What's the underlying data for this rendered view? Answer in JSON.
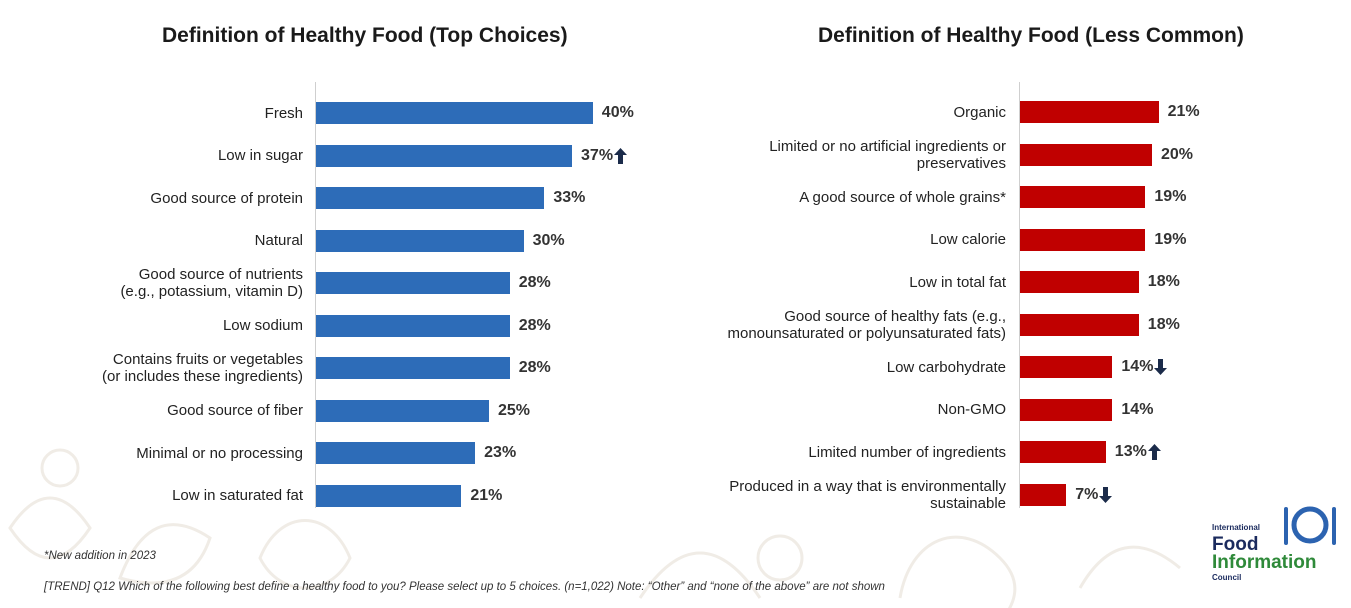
{
  "chart_data": [
    {
      "type": "bar",
      "orientation": "horizontal",
      "title": "Definition of Healthy Food (Top Choices)",
      "color": "#2d6cb8",
      "categories": [
        "Fresh",
        "Low in sugar",
        "Good source of protein",
        "Natural",
        "Good source of nutrients (e.g., potassium, vitamin D)",
        "Low sodium",
        "Contains fruits or vegetables (or includes these ingredients)",
        "Good source of fiber",
        "Minimal or no processing",
        "Low in saturated fat"
      ],
      "label_lines": [
        [
          "Fresh"
        ],
        [
          "Low in sugar"
        ],
        [
          "Good source of protein"
        ],
        [
          "Natural"
        ],
        [
          "Good source of nutrients",
          "(e.g., potassium, vitamin D)"
        ],
        [
          "Low sodium"
        ],
        [
          "Contains fruits or vegetables",
          "(or includes these ingredients)"
        ],
        [
          "Good source of fiber"
        ],
        [
          "Minimal or no processing"
        ],
        [
          "Low in saturated fat"
        ]
      ],
      "values": [
        40,
        37,
        33,
        30,
        28,
        28,
        28,
        25,
        23,
        21
      ],
      "value_labels": [
        "40%",
        "37%",
        "33%",
        "30%",
        "28%",
        "28%",
        "28%",
        "25%",
        "23%",
        "21%"
      ],
      "trend": [
        "",
        "up",
        "",
        "",
        "",
        "",
        "",
        "",
        "",
        ""
      ]
    },
    {
      "type": "bar",
      "orientation": "horizontal",
      "title": "Definition of Healthy Food (Less Common)",
      "color": "#c00000",
      "categories": [
        "Organic",
        "Limited or no artificial ingredients or preservatives",
        "A good source of whole grains*",
        "Low calorie",
        "Low in total fat",
        "Good source of healthy fats (e.g., monounsaturated or polyunsaturated fats)",
        "Low carbohydrate",
        "Non-GMO",
        "Limited number of ingredients",
        "Produced in a way that is environmentally sustainable"
      ],
      "label_lines": [
        [
          "Organic"
        ],
        [
          "Limited or no artificial ingredients or",
          "preservatives"
        ],
        [
          "A good source of whole grains*"
        ],
        [
          "Low calorie"
        ],
        [
          "Low in total fat"
        ],
        [
          "Good source of healthy fats (e.g.,",
          "monounsaturated or polyunsaturated fats)"
        ],
        [
          "Low carbohydrate"
        ],
        [
          "Non-GMO"
        ],
        [
          "Limited number of ingredients"
        ],
        [
          "Produced in a way that is environmentally",
          "sustainable"
        ]
      ],
      "values": [
        21,
        20,
        19,
        19,
        18,
        18,
        14,
        14,
        13,
        7
      ],
      "value_labels": [
        "21%",
        "20%",
        "19%",
        "19%",
        "18%",
        "18%",
        "14%",
        "14%",
        "13%",
        "7%"
      ],
      "trend": [
        "",
        "",
        "",
        "",
        "",
        "",
        "down",
        "",
        "up",
        "down"
      ]
    }
  ],
  "footnotes": {
    "new_addition": "*New addition  in 2023",
    "trend_prefix": "[TREND]",
    "question": " Q12 Which of the following best define  a healthy food to you? Please select up to 5 choices. (n=1,022) Note: “Other” and “none  of the above” are not shown"
  },
  "logo": {
    "line1": "International",
    "line2": "Food",
    "line3": "Information",
    "line4": "Council"
  },
  "colors": {
    "trend_arrow": "#1b2b4a",
    "logo_navy": "#1b2b5e",
    "logo_green": "#2f8a3a"
  }
}
